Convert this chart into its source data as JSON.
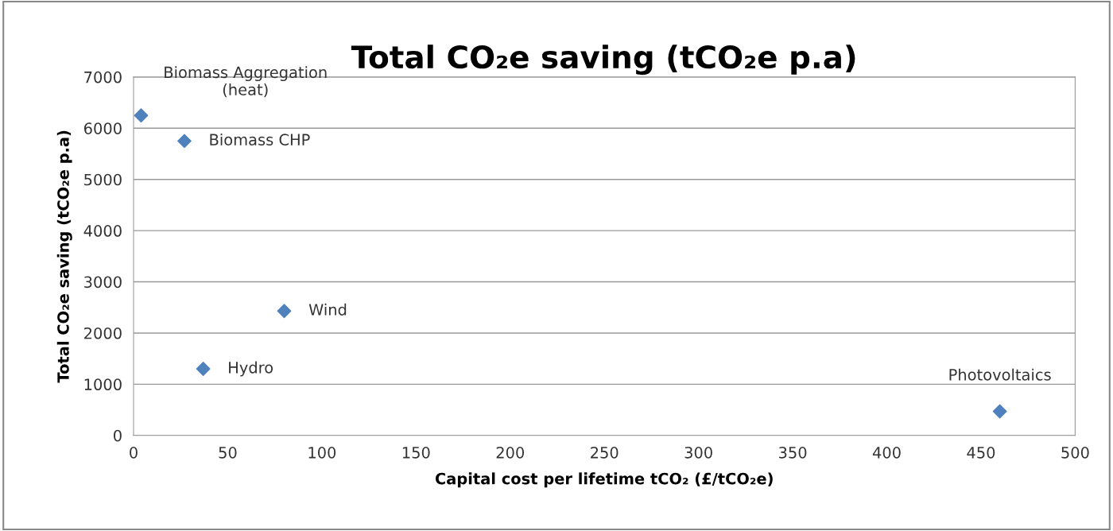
{
  "chart_data": {
    "type": "scatter",
    "title": "Total CO₂e saving (tCO₂e p.a)",
    "xlabel": "Capital cost per lifetime tCO₂ (£/tCO₂e)",
    "ylabel": "Total CO₂e saving (tCO₂e p.a)",
    "x": [
      4,
      27,
      37,
      80,
      460
    ],
    "series": [
      {
        "color": "#4f81bd",
        "values": [
          6250,
          5750,
          1300,
          2430,
          470
        ]
      }
    ],
    "annotations": [
      {
        "text": "Biomass Aggregation\n(heat)",
        "x": 4,
        "y": 6250
      },
      {
        "text": "Biomass CHP",
        "x": 27,
        "y": 5750
      },
      {
        "text": "Hydro",
        "x": 37,
        "y": 1300
      },
      {
        "text": "Wind",
        "x": 80,
        "y": 2430
      },
      {
        "text": "Photovoltaics",
        "x": 460,
        "y": 470
      }
    ],
    "xlim": [
      0,
      500
    ],
    "xticks": [
      0,
      50,
      100,
      150,
      200,
      250,
      300,
      350,
      400,
      450,
      500
    ],
    "ylim": [
      0,
      7000
    ],
    "yticks": [
      0,
      1000,
      2000,
      3000,
      4000,
      5000,
      6000,
      7000
    ],
    "grid": "y",
    "marker": "diamond",
    "legend": false
  }
}
